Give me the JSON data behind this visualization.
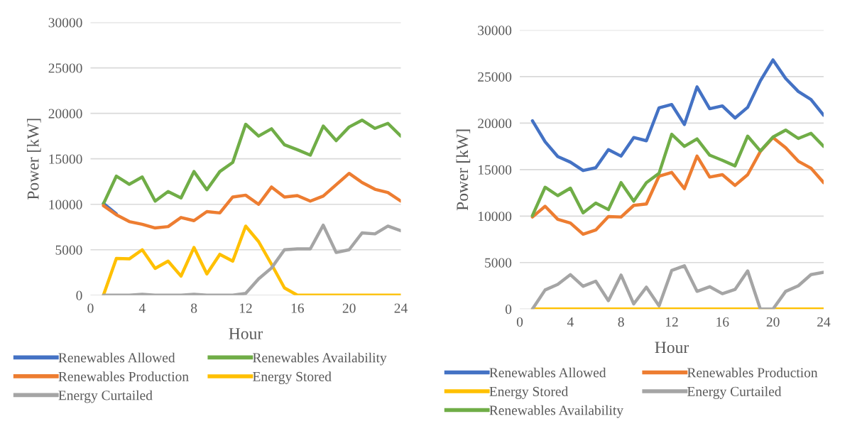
{
  "chart_data": [
    {
      "type": "line",
      "xlabel": "Hour",
      "ylabel": "Power [kW]",
      "x": [
        1,
        2,
        3,
        4,
        5,
        6,
        7,
        8,
        9,
        10,
        11,
        12,
        13,
        14,
        15,
        16,
        17,
        18,
        19,
        20,
        21,
        22,
        23,
        24
      ],
      "xlim": [
        0,
        24
      ],
      "xticks": [
        0,
        4,
        8,
        12,
        16,
        20,
        24
      ],
      "ylim": [
        0,
        30000
      ],
      "yticks": [
        0,
        5000,
        10000,
        15000,
        20000,
        25000,
        30000
      ],
      "grid": "y",
      "legend": "bottom",
      "marker": "none",
      "line_style": "solid",
      "series": [
        {
          "name": "Renewables Allowed",
          "color": "#4472c4",
          "values": [
            10100,
            8950,
            null,
            null,
            null,
            null,
            null,
            null,
            null,
            null,
            null,
            null,
            null,
            null,
            null,
            null,
            null,
            null,
            null,
            null,
            null,
            null,
            null,
            null
          ]
        },
        {
          "name": "Renewables Availability",
          "color": "#70ad47",
          "values": [
            10050,
            13100,
            12200,
            13000,
            10350,
            11400,
            10700,
            13600,
            11600,
            13600,
            14600,
            18800,
            17500,
            18300,
            16550,
            16000,
            15400,
            18600,
            17000,
            18500,
            19250,
            18350,
            18900,
            17500
          ]
        },
        {
          "name": "Renewables Production",
          "color": "#ed7d31",
          "values": [
            9850,
            8850,
            8100,
            7800,
            7400,
            7550,
            8550,
            8200,
            9200,
            9050,
            10800,
            11000,
            10000,
            11900,
            10800,
            10950,
            10350,
            10900,
            12150,
            13400,
            12400,
            11650,
            11300,
            10350
          ]
        },
        {
          "name": "Energy Stored",
          "color": "#ffc000",
          "values": [
            0,
            4050,
            4000,
            5000,
            2950,
            3750,
            2100,
            5250,
            2350,
            4500,
            3750,
            7600,
            5900,
            3400,
            800,
            0,
            0,
            0,
            0,
            0,
            0,
            0,
            0,
            0
          ]
        },
        {
          "name": "Energy Curtailed",
          "color": "#a5a5a5",
          "values": [
            0,
            0,
            0,
            100,
            0,
            0,
            0,
            100,
            0,
            0,
            0,
            200,
            1800,
            3000,
            5000,
            5100,
            5100,
            7700,
            4700,
            5000,
            6850,
            6750,
            7600,
            7100
          ]
        }
      ]
    },
    {
      "type": "line",
      "xlabel": "Hour",
      "ylabel": "Power [kW]",
      "x": [
        1,
        2,
        3,
        4,
        5,
        6,
        7,
        8,
        9,
        10,
        11,
        12,
        13,
        14,
        15,
        16,
        17,
        18,
        19,
        20,
        21,
        22,
        23,
        24
      ],
      "xlim": [
        0,
        24
      ],
      "xticks": [
        0,
        4,
        8,
        12,
        16,
        20,
        24
      ],
      "ylim": [
        0,
        30000
      ],
      "yticks": [
        0,
        5000,
        10000,
        15000,
        20000,
        25000,
        30000
      ],
      "grid": "y",
      "legend": "bottom",
      "marker": "none",
      "line_style": "solid",
      "series": [
        {
          "name": "Renewables Allowed",
          "color": "#4472c4",
          "values": [
            20250,
            18000,
            16400,
            15800,
            14900,
            15200,
            17150,
            16450,
            18450,
            18100,
            21650,
            22000,
            19850,
            23900,
            21550,
            21850,
            20550,
            21700,
            24550,
            26800,
            24800,
            23400,
            22550,
            20850
          ]
        },
        {
          "name": "Renewables Production",
          "color": "#ed7d31",
          "values": [
            9900,
            11050,
            9650,
            9250,
            8050,
            8500,
            9950,
            9900,
            11150,
            11300,
            14300,
            14700,
            12950,
            16450,
            14200,
            14450,
            13300,
            14450,
            16950,
            18450,
            17350,
            15900,
            15150,
            13600
          ]
        },
        {
          "name": "Energy Stored",
          "color": "#ffc000",
          "values": [
            0,
            0,
            0,
            0,
            0,
            0,
            0,
            0,
            0,
            0,
            0,
            0,
            0,
            0,
            0,
            0,
            0,
            0,
            0,
            0,
            0,
            0,
            0,
            0
          ]
        },
        {
          "name": "Energy Curtailed",
          "color": "#a5a5a5",
          "values": [
            0,
            2050,
            2650,
            3700,
            2450,
            3000,
            900,
            3650,
            550,
            2350,
            350,
            4150,
            4650,
            1900,
            2400,
            1650,
            2100,
            4100,
            0,
            0,
            1900,
            2500,
            3700,
            3950
          ]
        },
        {
          "name": "Renewables Availability",
          "color": "#70ad47",
          "values": [
            10050,
            13100,
            12200,
            13000,
            10350,
            11400,
            10700,
            13600,
            11600,
            13600,
            14600,
            18800,
            17500,
            18300,
            16550,
            16000,
            15400,
            18600,
            17000,
            18500,
            19250,
            18350,
            18900,
            17500
          ]
        }
      ]
    }
  ]
}
